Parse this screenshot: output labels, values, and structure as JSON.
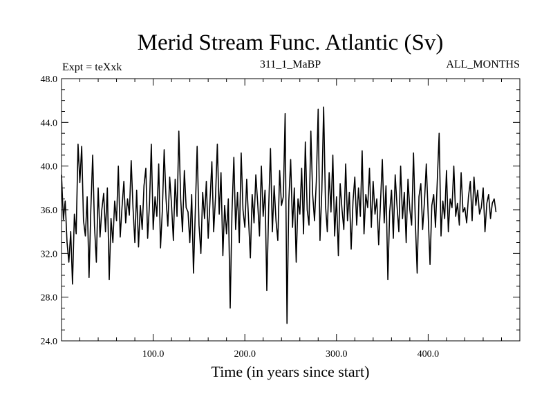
{
  "chart_data": {
    "type": "line",
    "title": "Merid Stream Func. Atlantic (Sv)",
    "subtitle_left": "Expt = teXxk",
    "subtitle_center": "311_1_MaBP",
    "subtitle_right": "ALL_MONTHS",
    "xlabel": "Time (in years since start)",
    "ylabel": "",
    "xlim": [
      0,
      500
    ],
    "ylim": [
      24,
      48
    ],
    "x_ticks": [
      100,
      200,
      300,
      400
    ],
    "x_tick_labels": [
      "100.0",
      "200.0",
      "300.0",
      "400.0"
    ],
    "y_ticks": [
      24,
      28,
      32,
      36,
      40,
      44,
      48
    ],
    "y_tick_labels": [
      "24.0",
      "28.0",
      "32.0",
      "36.0",
      "40.0",
      "44.0",
      "48.0"
    ],
    "grid": false,
    "series": [
      {
        "name": "Merid Stream Func. Atlantic",
        "color": "#000000",
        "x_start": 0,
        "x_step": 2,
        "values": [
          39.2,
          35.1,
          36.8,
          33.0,
          31.2,
          34.0,
          29.2,
          35.6,
          33.8,
          42.0,
          38.5,
          41.8,
          35.0,
          33.6,
          37.2,
          29.8,
          36.0,
          41.0,
          34.5,
          31.2,
          38.0,
          33.5,
          36.0,
          37.5,
          34.0,
          38.0,
          29.6,
          35.2,
          33.0,
          36.8,
          35.0,
          40.0,
          33.5,
          36.2,
          38.6,
          34.8,
          37.0,
          35.5,
          40.5,
          36.2,
          33.0,
          37.8,
          32.6,
          36.4,
          34.2,
          38.2,
          39.8,
          33.4,
          36.6,
          42.0,
          34.2,
          37.2,
          35.4,
          40.2,
          32.5,
          36.0,
          41.5,
          37.0,
          34.5,
          39.0,
          36.5,
          33.2,
          38.8,
          35.4,
          43.2,
          37.0,
          34.0,
          39.6,
          36.2,
          35.8,
          33.0,
          37.4,
          30.2,
          36.0,
          41.8,
          34.6,
          32.0,
          37.6,
          35.2,
          38.6,
          33.4,
          36.8,
          40.4,
          34.0,
          37.2,
          42.0,
          35.6,
          39.4,
          31.8,
          36.4,
          33.8,
          37.0,
          27.0,
          35.8,
          40.8,
          34.2,
          37.6,
          33.0,
          41.2,
          36.0,
          34.4,
          38.8,
          35.2,
          31.6,
          37.4,
          34.8,
          39.2,
          36.6,
          33.6,
          40.0,
          35.4,
          37.8,
          28.6,
          36.2,
          41.6,
          34.0,
          38.2,
          35.0,
          33.2,
          39.6,
          36.4,
          37.2,
          44.8,
          25.6,
          36.8,
          40.6,
          34.4,
          38.0,
          31.2,
          37.0,
          35.6,
          39.8,
          33.8,
          42.2,
          36.0,
          34.6,
          43.2,
          37.4,
          35.0,
          38.6,
          45.2,
          33.2,
          37.8,
          45.4,
          36.4,
          34.0,
          39.4,
          35.8,
          41.0,
          33.6,
          37.2,
          31.8,
          38.4,
          36.0,
          34.2,
          40.2,
          35.0,
          37.6,
          32.4,
          36.8,
          39.0,
          34.6,
          38.0,
          35.4,
          41.4,
          33.8,
          37.4,
          36.2,
          39.8,
          34.4,
          38.6,
          35.6,
          37.0,
          32.8,
          36.6,
          40.6,
          34.8,
          38.2,
          29.6,
          35.8,
          37.8,
          33.4,
          39.2,
          36.4,
          34.0,
          40.0,
          35.2,
          37.6,
          33.0,
          38.8,
          36.0,
          34.6,
          41.2,
          35.0,
          30.2,
          37.2,
          38.4,
          34.2,
          36.8,
          40.2,
          35.6,
          31.0,
          36.4,
          37.4,
          34.4,
          38.8,
          43.0,
          33.6,
          36.8,
          35.2,
          39.6,
          34.0,
          37.0,
          36.2,
          40.0,
          35.4,
          36.6,
          34.6,
          39.4,
          35.8,
          36.2,
          34.8,
          37.2,
          38.6,
          35.0,
          39.0,
          36.4,
          37.8,
          35.6,
          36.2,
          38.0,
          34.0,
          36.6,
          37.4,
          35.2,
          36.6,
          37.0,
          35.8
        ]
      }
    ]
  }
}
